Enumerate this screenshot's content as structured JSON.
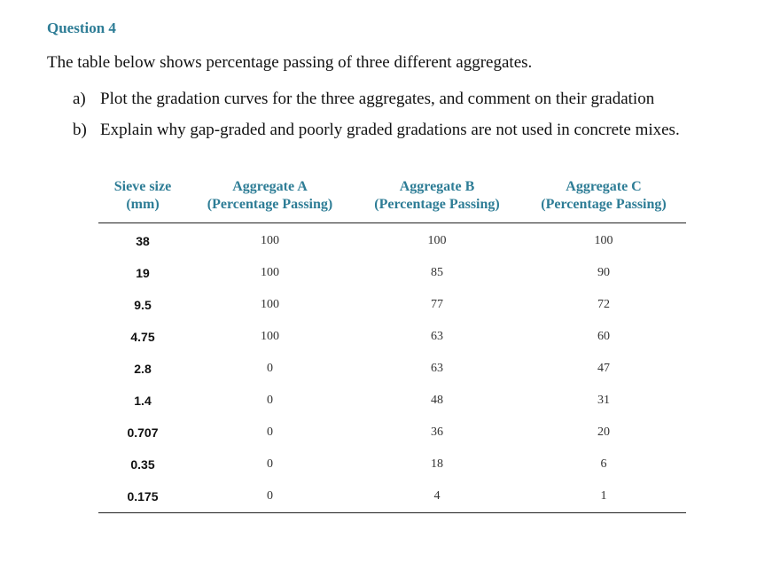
{
  "question": {
    "title": "Question 4",
    "intro": "The table below shows percentage passing of three different aggregates.",
    "parts": [
      {
        "marker": "a)",
        "text": "Plot the gradation curves for the three aggregates, and comment on their gradation"
      },
      {
        "marker": "b)",
        "text": "Explain why gap-graded and poorly graded gradations are not used in concrete mixes."
      }
    ]
  },
  "table": {
    "headers": [
      {
        "line1": "Sieve size",
        "line2": "(mm)"
      },
      {
        "line1": "Aggregate A",
        "line2": "(Percentage Passing)"
      },
      {
        "line1": "Aggregate B",
        "line2": "(Percentage Passing)"
      },
      {
        "line1": "Aggregate C",
        "line2": "(Percentage Passing)"
      }
    ],
    "rows": [
      [
        "38",
        "100",
        "100",
        "100"
      ],
      [
        "19",
        "100",
        "85",
        "90"
      ],
      [
        "9.5",
        "100",
        "77",
        "72"
      ],
      [
        "4.75",
        "100",
        "63",
        "60"
      ],
      [
        "2.8",
        "0",
        "63",
        "47"
      ],
      [
        "1.4",
        "0",
        "48",
        "31"
      ],
      [
        "0.707",
        "0",
        "36",
        "20"
      ],
      [
        "0.35",
        "0",
        "18",
        "6"
      ],
      [
        "0.175",
        "0",
        "4",
        "1"
      ]
    ]
  },
  "colors": {
    "heading": "#2e7d96",
    "text": "#111111"
  }
}
